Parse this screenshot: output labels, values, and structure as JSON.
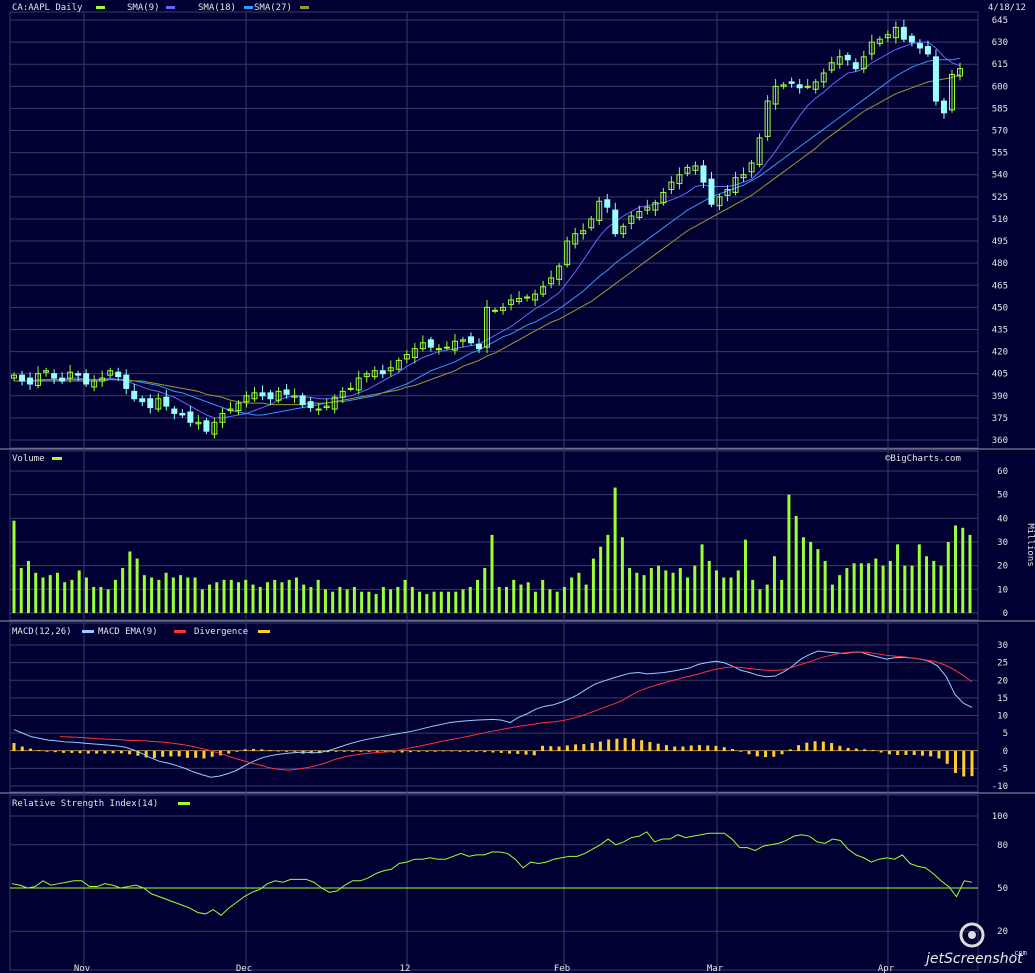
{
  "colors": {
    "background": "#000033",
    "grid": "#3a3a6a",
    "separator": "#9a9aaa",
    "up_candle": "#9bff33",
    "down_candle": "#99ffff",
    "sma9": "#6666ff",
    "sma18": "#3399ff",
    "sma27": "#999933",
    "volume": "#9bff33",
    "macd": "#99ccff",
    "macd_ema": "#ff3333",
    "divergence": "#ffcc33",
    "rsi": "#9bff33",
    "text": "#e6e6e6"
  },
  "header": {
    "symbol": "CA:AAPL Daily",
    "sma9": "SMA(9)",
    "sma18": "SMA(18)",
    "sma27": "SMA(27)",
    "date": "4/18/12"
  },
  "volume_header": {
    "label": "Volume",
    "credit": "©BigCharts.com",
    "unit": "Millions"
  },
  "macd_header": {
    "macd": "MACD(12,26)",
    "ema": "MACD EMA(9)",
    "divergence": "Divergence"
  },
  "rsi_header": {
    "label": "Relative Strength Index(14)"
  },
  "x_labels": [
    "Nov",
    "Dec",
    "12",
    "Feb",
    "Mar",
    "Apr"
  ],
  "watermark": "jetScreenshot",
  "watermark_small": ".com",
  "chart_data": [
    {
      "type": "candlestick",
      "title": "CA:AAPL Daily",
      "ylim": [
        360,
        645
      ],
      "yticks": [
        645,
        630,
        615,
        600,
        585,
        570,
        555,
        540,
        525,
        510,
        495,
        480,
        465,
        450,
        435,
        420,
        405,
        390,
        375,
        360
      ],
      "close": [
        404,
        400,
        398,
        405,
        407,
        402,
        400,
        406,
        404,
        398,
        400,
        402,
        407,
        403,
        395,
        388,
        386,
        382,
        388,
        383,
        378,
        377,
        372,
        372,
        366,
        372,
        378,
        381,
        385,
        390,
        392,
        390,
        388,
        393,
        391,
        390,
        384,
        382,
        381,
        383,
        389,
        393,
        395,
        402,
        405,
        407,
        405,
        409,
        414,
        418,
        422,
        426,
        423,
        422,
        423,
        427,
        428,
        426,
        422,
        450,
        448,
        450,
        455,
        456,
        457,
        459,
        464,
        470,
        478,
        495,
        500,
        502,
        510,
        522,
        518,
        500,
        505,
        512,
        515,
        518,
        521,
        528,
        535,
        540,
        545,
        546,
        535,
        520,
        525,
        530,
        538,
        540,
        548,
        565,
        590,
        600,
        601,
        602,
        599,
        600,
        603,
        609,
        616,
        620,
        618,
        612,
        620,
        630,
        632,
        635,
        640,
        632,
        630,
        626,
        622,
        590,
        582,
        608,
        612
      ],
      "ma": {
        "SMA(9)": [
          400,
          400,
          400,
          401,
          401,
          401,
          401,
          402,
          402,
          401,
          401,
          401,
          402,
          401,
          400,
          398,
          396,
          394,
          393,
          391,
          389,
          386,
          383,
          380,
          377,
          375,
          375,
          376,
          377,
          378,
          380,
          382,
          384,
          387,
          389,
          390,
          389,
          389,
          388,
          388,
          388,
          389,
          390,
          392,
          394,
          397,
          400,
          403,
          406,
          410,
          413,
          416,
          418,
          420,
          421,
          422,
          423,
          424,
          425,
          428,
          431,
          434,
          437,
          441,
          445,
          449,
          452,
          456,
          460,
          467,
          474,
          482,
          490,
          498,
          504,
          508,
          512,
          515,
          518,
          519,
          520,
          521,
          523,
          525,
          528,
          532,
          533,
          532,
          532,
          532,
          533,
          535,
          537,
          542,
          549,
          556,
          564,
          572,
          580,
          587,
          592,
          596,
          601,
          605,
          609,
          610,
          612,
          616,
          619,
          622,
          625,
          627,
          629,
          630,
          630,
          626,
          620,
          616,
          614
        ],
        "SMA(18)": [
          400,
          400,
          400,
          400,
          401,
          401,
          401,
          401,
          401,
          401,
          401,
          401,
          401,
          401,
          400,
          400,
          399,
          398,
          397,
          395,
          393,
          392,
          390,
          388,
          386,
          384,
          382,
          380,
          379,
          378,
          377,
          377,
          378,
          379,
          380,
          381,
          382,
          383,
          384,
          385,
          386,
          386,
          387,
          388,
          389,
          390,
          392,
          394,
          396,
          398,
          401,
          404,
          407,
          409,
          411,
          413,
          416,
          419,
          421,
          424,
          427,
          430,
          432,
          435,
          438,
          440,
          443,
          446,
          449,
          453,
          457,
          461,
          466,
          471,
          475,
          480,
          484,
          488,
          492,
          496,
          500,
          504,
          508,
          512,
          516,
          519,
          522,
          525,
          527,
          529,
          531,
          533,
          536,
          539,
          543,
          547,
          551,
          555,
          559,
          563,
          567,
          571,
          575,
          579,
          583,
          587,
          591,
          595,
          599,
          603,
          607,
          610,
          613,
          615,
          617,
          618,
          618,
          618,
          619
        ],
        "SMA(27)": [
          400,
          400,
          400,
          400,
          400,
          400,
          400,
          400,
          400,
          400,
          400,
          400,
          401,
          401,
          401,
          400,
          400,
          399,
          398,
          397,
          396,
          395,
          394,
          393,
          391,
          390,
          389,
          387,
          386,
          385,
          385,
          385,
          384,
          384,
          384,
          384,
          384,
          385,
          385,
          385,
          386,
          387,
          388,
          389,
          390,
          391,
          392,
          393,
          394,
          396,
          397,
          399,
          401,
          403,
          405,
          407,
          410,
          412,
          414,
          417,
          419,
          422,
          425,
          428,
          431,
          434,
          437,
          440,
          442,
          445,
          448,
          451,
          454,
          458,
          462,
          466,
          470,
          474,
          478,
          482,
          486,
          490,
          494,
          498,
          502,
          505,
          508,
          511,
          514,
          517,
          520,
          523,
          526,
          530,
          534,
          538,
          542,
          546,
          550,
          554,
          558,
          563,
          567,
          571,
          575,
          579,
          583,
          586,
          589,
          592,
          595,
          597,
          599,
          601,
          603,
          604,
          605,
          606,
          608
        ]
      }
    },
    {
      "type": "bar",
      "title": "Volume",
      "ylabel": "Millions",
      "ylim": [
        0,
        60
      ],
      "yticks": [
        60,
        50,
        40,
        30,
        20,
        10,
        0
      ],
      "values": [
        39,
        19,
        22,
        17,
        15,
        16,
        17,
        13,
        14,
        18,
        15,
        11,
        11,
        10,
        14,
        19,
        26,
        23,
        16,
        15,
        14,
        17,
        15,
        16,
        15,
        15,
        10,
        12,
        13,
        14,
        14,
        13,
        14,
        12,
        11,
        13,
        14,
        13,
        14,
        15,
        12,
        11,
        14,
        10,
        9,
        11,
        10,
        11,
        9,
        9,
        8,
        11,
        10,
        11,
        14,
        11,
        9,
        8,
        9,
        9,
        9,
        9,
        10,
        11,
        14,
        19,
        33,
        11,
        11,
        14,
        12,
        13,
        9,
        14,
        10,
        9,
        11,
        15,
        17,
        12,
        23,
        28,
        33,
        53,
        32,
        19,
        17,
        16,
        19,
        20,
        18,
        17,
        19,
        15,
        20,
        29,
        22,
        18,
        15,
        15,
        18,
        31,
        14,
        10,
        12,
        24,
        14,
        50,
        41,
        32,
        30,
        27,
        22,
        12,
        16,
        19,
        21,
        21,
        21,
        23,
        20,
        22,
        29,
        20,
        20,
        29,
        24,
        22,
        20,
        30,
        37,
        36,
        33
      ]
    },
    {
      "type": "line",
      "title": "MACD(12,26)",
      "ylim": [
        -10,
        30
      ],
      "yticks": [
        30,
        25,
        20,
        15,
        10,
        5,
        0,
        -5,
        -10
      ],
      "series": [
        {
          "name": "MACD(12,26)",
          "values": [
            6,
            5,
            4,
            3.5,
            3,
            2.8,
            2.5,
            2.4,
            2.2,
            2,
            1.8,
            1.6,
            1.4,
            1,
            0.2,
            -0.8,
            -2,
            -3,
            -3.5,
            -4.2,
            -5,
            -6,
            -6.8,
            -7.5,
            -7.2,
            -6.5,
            -5.6,
            -4.2,
            -3,
            -2,
            -1.4,
            -1,
            -0.7,
            -0.5,
            -0.4,
            -0.6,
            -0.4,
            0.2,
            1,
            1.8,
            2.5,
            3.1,
            3.6,
            4,
            4.5,
            4.9,
            5.3,
            5.8,
            6.4,
            7,
            7.5,
            8,
            8.3,
            8.5,
            8.7,
            8.8,
            8.9,
            8.7,
            8,
            9.5,
            10.5,
            11.8,
            12.6,
            13,
            13.8,
            14.8,
            16,
            17.6,
            19,
            19.8,
            20.6,
            21.3,
            22,
            22.2,
            21.8,
            22,
            22.2,
            22.6,
            23,
            23.5,
            24.5,
            25,
            25.4,
            25,
            24,
            22.8,
            22.2,
            21.4,
            21,
            21.2,
            22.4,
            24,
            26,
            27.3,
            28.3,
            28,
            27.8,
            27.6,
            27.9,
            28,
            27.2,
            26.6,
            26,
            26.4,
            26.5,
            26.3,
            26,
            25.4,
            24,
            21,
            16,
            13.5,
            12.3
          ]
        },
        {
          "name": "MACD EMA(9)",
          "values": [
            4,
            3.9,
            3.8,
            3.6,
            3.4,
            3.3,
            3.2,
            3,
            2.9,
            2.8,
            2.6,
            2.4,
            2.1,
            1.7,
            1.2,
            0.6,
            -0.1,
            -0.9,
            -1.8,
            -2.6,
            -3.4,
            -4,
            -4.8,
            -5.3,
            -5.5,
            -5.2,
            -4.8,
            -4.2,
            -3.4,
            -2.4,
            -1.7,
            -1.2,
            -0.8,
            -0.6,
            -0.4,
            -0.2,
            0.3,
            0.9,
            1.4,
            2,
            2.6,
            3.1,
            3.6,
            4.1,
            4.7,
            5.3,
            5.8,
            6.3,
            6.8,
            7.2,
            7.6,
            8,
            8.2,
            8.6,
            9.2,
            10,
            11,
            12,
            13,
            14,
            15.6,
            17,
            18,
            18.8,
            19.6,
            20.3,
            21,
            21.6,
            22.4,
            23.1,
            23.6,
            23.8,
            23.5,
            23.2,
            22.9,
            22.8,
            22.9,
            23.6,
            24.5,
            25.3,
            26.3,
            27,
            27.6,
            27.9,
            28.1,
            27.9,
            27.5,
            27.1,
            26.8,
            26.6,
            26.2,
            25.8,
            25.4,
            24.5,
            23.2,
            21.5,
            19.5
          ]
        }
      ]
    },
    {
      "type": "bar",
      "title": "Divergence",
      "values": [
        2.2,
        1.2,
        0.6,
        0.2,
        -0.2,
        -0.4,
        -0.6,
        -0.6,
        -0.7,
        -0.8,
        -0.8,
        -0.8,
        -0.7,
        -0.7,
        -1,
        -1.4,
        -1.9,
        -2.1,
        -1.7,
        -1.6,
        -1.6,
        -2,
        -2,
        -2.2,
        -1.7,
        -1.3,
        -0.8,
        0,
        0.4,
        0.5,
        0.4,
        0.2,
        0.1,
        0,
        -0.2,
        -0.8,
        -0.7,
        -0.7,
        -0.4,
        -0.2,
        -0.1,
        0,
        0,
        -0.1,
        -0.2,
        -0.4,
        -0.5,
        -0.5,
        -0.4,
        -0.2,
        -0.1,
        0,
        0.1,
        0.1,
        0,
        -0.1,
        -0.2,
        -0.4,
        -0.5,
        -0.6,
        -0.8,
        -0.9,
        -1.1,
        -1.3,
        1.4,
        1.3,
        1.2,
        1.5,
        1.8,
        1.9,
        2.2,
        2.6,
        3.2,
        3.4,
        3.6,
        3.4,
        3,
        2.5,
        2,
        1.6,
        1.2,
        1.2,
        1.5,
        1.6,
        1.5,
        1.4,
        1,
        0.5,
        -0.2,
        -1,
        -1.6,
        -1.8,
        -1.7,
        -1,
        0.4,
        1.6,
        2.3,
        2.7,
        2.6,
        2.2,
        1.4,
        0.8,
        0.6,
        0.4,
        0.2,
        -0.5,
        -1,
        -1.2,
        -1.2,
        -1.2,
        -1.4,
        -1.6,
        -2.2,
        -3.7,
        -6.3,
        -7.3,
        -7.2
      ]
    },
    {
      "type": "line",
      "title": "Relative Strength Index(14)",
      "ylim": [
        0,
        100
      ],
      "yticks": [
        100,
        80,
        50,
        20
      ],
      "series": [
        {
          "name": "Relative Strength Index(14)",
          "values": [
            53,
            52,
            50,
            51,
            55,
            52,
            53,
            54,
            55,
            55,
            51,
            51,
            53,
            52,
            50,
            51,
            52,
            50,
            46,
            44,
            42,
            40,
            38,
            36,
            33,
            32,
            35,
            31,
            36,
            40,
            44,
            47,
            49,
            53,
            55,
            54,
            56,
            56,
            56,
            54,
            50,
            47,
            48,
            52,
            55,
            55,
            57,
            60,
            62,
            63,
            67,
            68,
            70,
            70,
            71,
            70,
            70,
            72,
            74,
            72,
            73,
            73,
            75,
            75,
            74,
            70,
            64,
            68,
            67,
            68,
            70,
            71,
            72,
            72,
            74,
            77,
            80,
            84,
            80,
            82,
            85,
            86,
            89,
            82,
            84,
            84,
            87,
            85,
            86,
            87,
            88,
            88,
            88,
            84,
            78,
            78,
            76,
            79,
            80,
            81,
            83,
            86,
            87,
            86,
            82,
            81,
            84,
            83,
            77,
            73,
            71,
            68,
            70,
            71,
            70,
            73,
            67,
            65,
            64,
            60,
            55,
            51,
            44,
            55,
            54
          ]
        }
      ]
    }
  ]
}
